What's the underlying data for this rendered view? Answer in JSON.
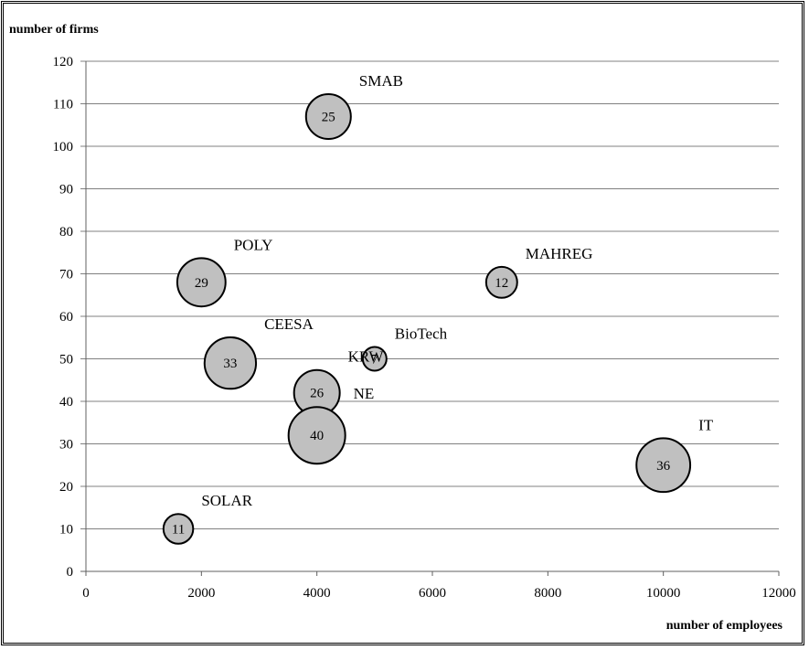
{
  "chart_data": {
    "type": "scatter",
    "title": "",
    "xlabel": "number of employees",
    "ylabel": "number of firms",
    "xlim": [
      0,
      12000
    ],
    "ylim": [
      0,
      120
    ],
    "xticks": [
      0,
      2000,
      4000,
      6000,
      8000,
      10000,
      12000
    ],
    "yticks": [
      0,
      10,
      20,
      30,
      40,
      50,
      60,
      70,
      80,
      90,
      100,
      110,
      120
    ],
    "grid": "horizontal",
    "legend": "none",
    "colors": {
      "bubble_fill": "#c0c0c0",
      "bubble_stroke": "#000000",
      "grid": "#808080"
    },
    "points": [
      {
        "label": "SMAB",
        "x": 4200,
        "y": 107,
        "size": 25
      },
      {
        "label": "POLY",
        "x": 2000,
        "y": 68,
        "size": 29
      },
      {
        "label": "MAHREG",
        "x": 7200,
        "y": 68,
        "size": 12
      },
      {
        "label": "CEESA",
        "x": 2500,
        "y": 49,
        "size": 33
      },
      {
        "label": "BioTech",
        "x": 5000,
        "y": 50,
        "size": 7
      },
      {
        "label": "KRW",
        "x": 4000,
        "y": 42,
        "size": 26
      },
      {
        "label": "NE",
        "x": 4000,
        "y": 32,
        "size": 40
      },
      {
        "label": "IT",
        "x": 10000,
        "y": 25,
        "size": 36
      },
      {
        "label": "SOLAR",
        "x": 1600,
        "y": 10,
        "size": 11
      }
    ]
  }
}
